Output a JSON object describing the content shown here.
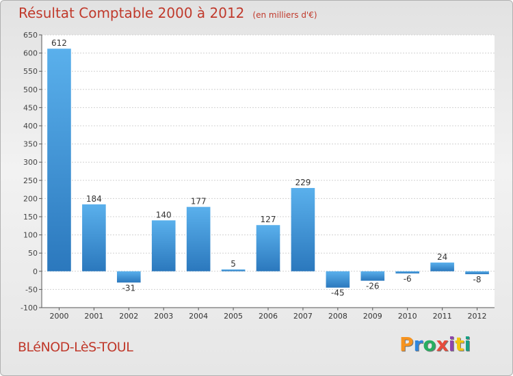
{
  "title": "Résultat Comptable 2000 à 2012",
  "unit": "(en milliers d'€)",
  "location": "BLéNOD-LèS-TOUL",
  "logo": {
    "letters": [
      "P",
      "r",
      "o",
      "x",
      "i",
      "t",
      "i"
    ],
    "colors": [
      "#f7931e",
      "#2e86de",
      "#27ae60",
      "#e74c3c",
      "#8e44ad",
      "#f1c40f",
      "#16a085"
    ]
  },
  "chart_data": {
    "type": "bar",
    "categories": [
      "2000",
      "2001",
      "2002",
      "2003",
      "2004",
      "2005",
      "2006",
      "2007",
      "2008",
      "2009",
      "2010",
      "2011",
      "2012"
    ],
    "values": [
      612,
      184,
      -31,
      140,
      177,
      5,
      127,
      229,
      -45,
      -26,
      -6,
      24,
      -8
    ],
    "ylim": [
      -100,
      650
    ],
    "yticks": [
      -100,
      -50,
      0,
      50,
      100,
      150,
      200,
      250,
      300,
      350,
      400,
      450,
      500,
      550,
      600,
      650
    ],
    "grid": true,
    "bar_color": "#4a9fe0"
  }
}
